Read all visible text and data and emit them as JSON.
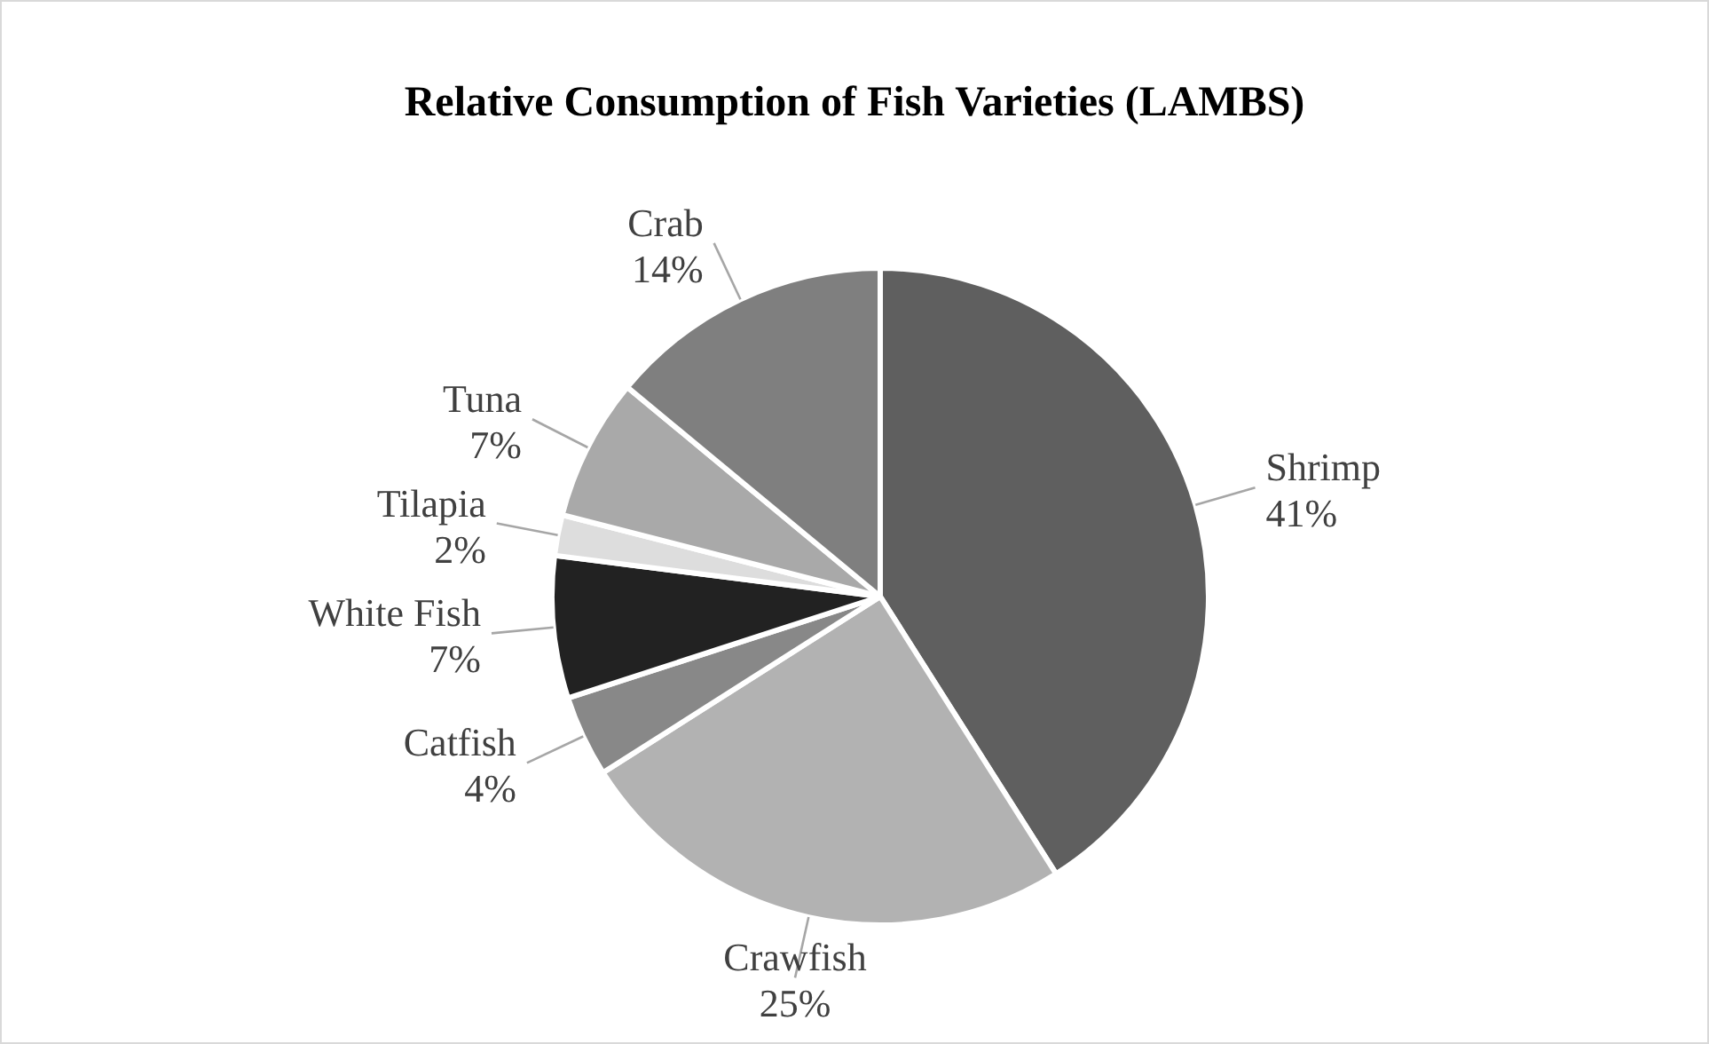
{
  "chart_data": {
    "type": "pie",
    "title": "Relative Consumption of Fish Varieties (LAMBS)",
    "categories": [
      "Shrimp",
      "Crawfish",
      "Catfish",
      "White Fish",
      "Tilapia",
      "Tuna",
      "Crab"
    ],
    "values": [
      41,
      25,
      4,
      7,
      2,
      7,
      14
    ],
    "value_labels": [
      "41%",
      "25%",
      "4%",
      "7%",
      "2%",
      "7%",
      "14%"
    ],
    "colors": [
      "#5f5f5f",
      "#b2b2b2",
      "#888888",
      "#222222",
      "#dddddd",
      "#a9a9a9",
      "#7f7f7f"
    ],
    "legend": false
  }
}
